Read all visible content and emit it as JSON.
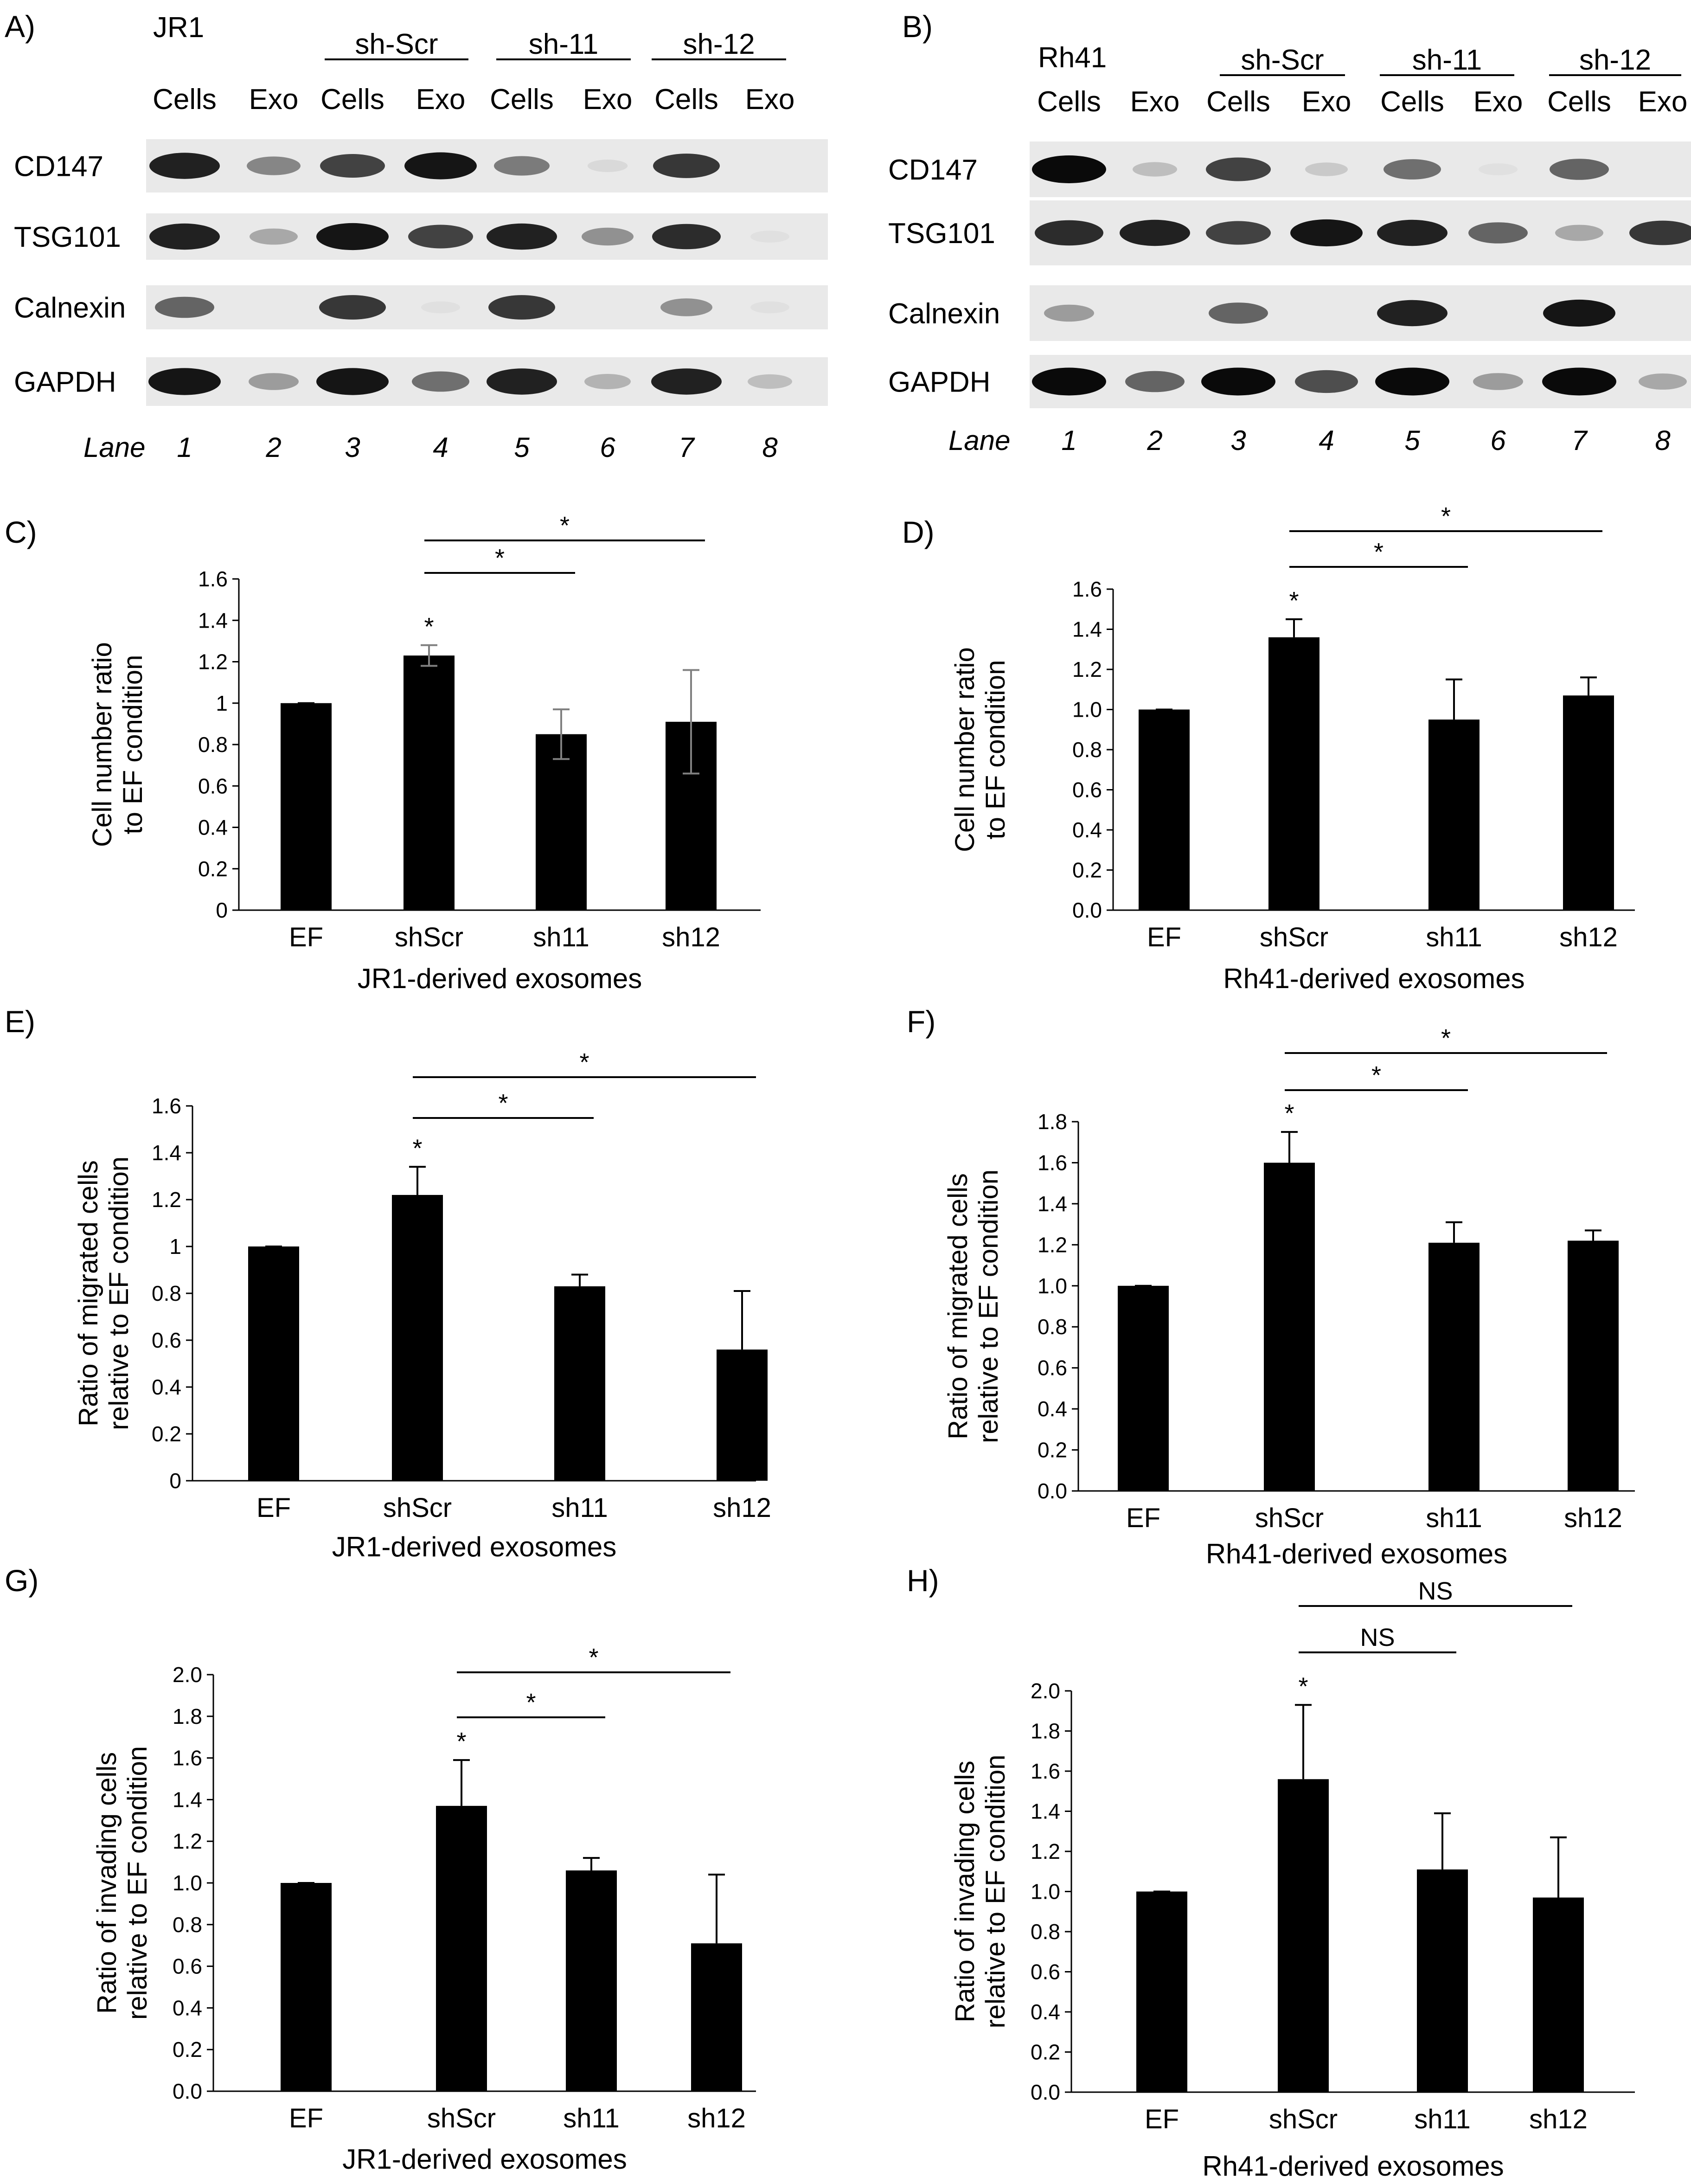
{
  "western_blots": [
    {
      "panel": "A)",
      "cell_line": "JR1",
      "groups": [
        "sh-Scr",
        "sh-11",
        "sh-12"
      ],
      "lane_labels": [
        "Cells",
        "Exo",
        "Cells",
        "Exo",
        "Cells",
        "Exo",
        "Cells",
        "Exo"
      ],
      "rows": [
        "CD147",
        "TSG101",
        "Calnexin",
        "GAPDH"
      ],
      "lane_word": "Lane",
      "lane_numbers": [
        "1",
        "2",
        "3",
        "4",
        "5",
        "6",
        "7",
        "8"
      ],
      "band_intensity": [
        [
          0.9,
          0.45,
          0.75,
          0.95,
          0.5,
          0.08,
          0.8,
          0.0
        ],
        [
          0.9,
          0.3,
          0.95,
          0.75,
          0.9,
          0.4,
          0.85,
          0.05
        ],
        [
          0.6,
          0.0,
          0.8,
          0.05,
          0.8,
          0.0,
          0.4,
          0.05
        ],
        [
          0.95,
          0.35,
          0.95,
          0.55,
          0.9,
          0.25,
          0.9,
          0.2
        ]
      ]
    },
    {
      "panel": "B)",
      "cell_line": "Rh41",
      "groups": [
        "sh-Scr",
        "sh-11",
        "sh-12"
      ],
      "lane_labels": [
        "Cells",
        "Exo",
        "Cells",
        "Exo",
        "Cells",
        "Exo",
        "Cells",
        "Exo"
      ],
      "rows": [
        "CD147",
        "TSG101",
        "Calnexin",
        "GAPDH"
      ],
      "lane_word": "Lane",
      "lane_numbers": [
        "1",
        "2",
        "3",
        "4",
        "5",
        "6",
        "7",
        "8"
      ],
      "band_intensity": [
        [
          1.0,
          0.2,
          0.75,
          0.15,
          0.55,
          0.05,
          0.6,
          0.0
        ],
        [
          0.85,
          0.9,
          0.75,
          0.95,
          0.9,
          0.6,
          0.3,
          0.8
        ],
        [
          0.35,
          0.0,
          0.6,
          0.0,
          0.9,
          0.0,
          0.95,
          0.0
        ],
        [
          1.0,
          0.6,
          1.0,
          0.7,
          1.0,
          0.35,
          1.0,
          0.3
        ]
      ]
    }
  ],
  "chart_data": [
    {
      "panel": "C)",
      "type": "bar",
      "categories": [
        "EF",
        "shScr",
        "sh11",
        "sh12"
      ],
      "values": [
        1.0,
        1.23,
        0.85,
        0.91
      ],
      "errors": [
        0.0,
        0.05,
        0.12,
        0.25
      ],
      "error_color": "#808080",
      "ylim": [
        0,
        1.6
      ],
      "ytick_step": 0.2,
      "ytick_decimals": 0,
      "ytick_labels": [
        "0",
        "0.2",
        "0.4",
        "0.6",
        "0.8",
        "1",
        "1.2",
        "1.4",
        "1.6"
      ],
      "ylabel": [
        "Cell number ratio",
        "to EF condition"
      ],
      "xlabel": "JR1-derived exosomes",
      "bar_marks": [
        "",
        "*",
        "",
        ""
      ],
      "brackets": [
        {
          "from": "shScr",
          "to": "sh11",
          "label": "*"
        },
        {
          "from": "shScr",
          "to": "sh12",
          "label": "*"
        }
      ]
    },
    {
      "panel": "D)",
      "type": "bar",
      "categories": [
        "EF",
        "shScr",
        "sh11",
        "sh12"
      ],
      "values": [
        1.0,
        1.36,
        0.95,
        1.07
      ],
      "errors": [
        0.0,
        0.09,
        0.2,
        0.09
      ],
      "error_color": "#000000",
      "ylim": [
        0,
        1.6
      ],
      "ytick_step": 0.2,
      "ytick_labels": [
        "0.0",
        "0.2",
        "0.4",
        "0.6",
        "0.8",
        "1.0",
        "1.2",
        "1.4",
        "1.6"
      ],
      "ylabel": [
        "Cell number ratio",
        "to EF condition"
      ],
      "xlabel": "Rh41-derived exosomes",
      "bar_marks": [
        "",
        "*",
        "",
        ""
      ],
      "brackets": [
        {
          "from": "shScr",
          "to": "sh11",
          "label": "*"
        },
        {
          "from": "shScr",
          "to": "sh12",
          "label": "*"
        }
      ]
    },
    {
      "panel": "E)",
      "type": "bar",
      "categories": [
        "EF",
        "shScr",
        "sh11",
        "sh12"
      ],
      "values": [
        1.0,
        1.22,
        0.83,
        0.56
      ],
      "errors": [
        0.0,
        0.12,
        0.05,
        0.25
      ],
      "error_color": "#000000",
      "ylim": [
        0,
        1.6
      ],
      "ytick_step": 0.2,
      "ytick_labels": [
        "0",
        "0.2",
        "0.4",
        "0.6",
        "0.8",
        "1",
        "1.2",
        "1.4",
        "1.6"
      ],
      "ylabel": [
        "Ratio of migrated cells",
        "relative to EF condition"
      ],
      "xlabel": "JR1-derived exosomes",
      "bar_marks": [
        "",
        "*",
        "",
        ""
      ],
      "brackets": [
        {
          "from": "shScr",
          "to": "sh11",
          "label": "*"
        },
        {
          "from": "shScr",
          "to": "sh12",
          "label": "*"
        }
      ]
    },
    {
      "panel": "F)",
      "type": "bar",
      "categories": [
        "EF",
        "shScr",
        "sh11",
        "sh12"
      ],
      "values": [
        1.0,
        1.6,
        1.21,
        1.22
      ],
      "errors": [
        0.0,
        0.15,
        0.1,
        0.05
      ],
      "error_color": "#000000",
      "ylim": [
        0,
        1.8
      ],
      "ytick_step": 0.2,
      "ytick_labels": [
        "0.0",
        "0.2",
        "0.4",
        "0.6",
        "0.8",
        "1.0",
        "1.2",
        "1.4",
        "1.6",
        "1.8"
      ],
      "ylabel": [
        "Ratio of migrated cells",
        "relative to EF condition"
      ],
      "xlabel": "Rh41-derived exosomes",
      "bar_marks": [
        "",
        "*",
        "",
        ""
      ],
      "brackets": [
        {
          "from": "shScr",
          "to": "sh11",
          "label": "*"
        },
        {
          "from": "shScr",
          "to": "sh12",
          "label": "*"
        }
      ]
    },
    {
      "panel": "G)",
      "type": "bar",
      "categories": [
        "EF",
        "shScr",
        "sh11",
        "sh12"
      ],
      "values": [
        1.0,
        1.37,
        1.06,
        0.71
      ],
      "errors": [
        0.0,
        0.22,
        0.06,
        0.33
      ],
      "error_color": "#000000",
      "ylim": [
        0,
        2.0
      ],
      "ytick_step": 0.2,
      "ytick_labels": [
        "0.0",
        "0.2",
        "0.4",
        "0.6",
        "0.8",
        "1.0",
        "1.2",
        "1.4",
        "1.6",
        "1.8",
        "2.0"
      ],
      "ylabel": [
        "Ratio of invading cells",
        "relative to EF condition"
      ],
      "xlabel": "JR1-derived exosomes",
      "bar_marks": [
        "",
        "*",
        "",
        ""
      ],
      "brackets": [
        {
          "from": "shScr",
          "to": "sh11",
          "label": "*"
        },
        {
          "from": "shScr",
          "to": "sh12",
          "label": "*"
        }
      ]
    },
    {
      "panel": "H)",
      "type": "bar",
      "categories": [
        "EF",
        "shScr",
        "sh11",
        "sh12"
      ],
      "values": [
        1.0,
        1.56,
        1.11,
        0.97
      ],
      "errors": [
        0.0,
        0.37,
        0.28,
        0.3
      ],
      "error_color": "#000000",
      "ylim": [
        0,
        2.0
      ],
      "ytick_step": 0.2,
      "ytick_labels": [
        "0.0",
        "0.2",
        "0.4",
        "0.6",
        "0.8",
        "1.0",
        "1.2",
        "1.4",
        "1.6",
        "1.8",
        "2.0"
      ],
      "ylabel": [
        "Ratio of invading cells",
        "relative to EF condition"
      ],
      "xlabel": "Rh41-derived exosomes",
      "bar_marks": [
        "",
        "*",
        "",
        ""
      ],
      "brackets": [
        {
          "from": "shScr",
          "to": "sh11",
          "label": "NS"
        },
        {
          "from": "shScr",
          "to": "sh12",
          "label": "NS"
        }
      ]
    }
  ]
}
